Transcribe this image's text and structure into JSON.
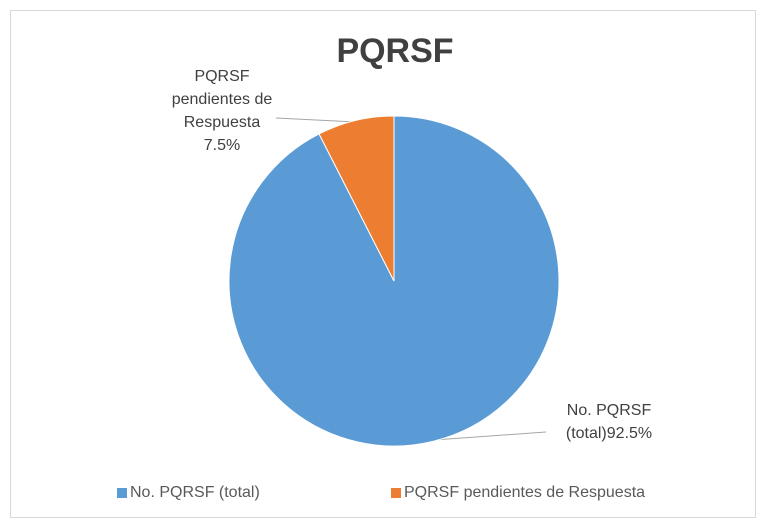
{
  "chart_data": {
    "type": "pie",
    "title": "PQRSF",
    "categories": [
      "No. PQRSF (total)",
      "PQRSF pendientes de Respuesta"
    ],
    "values": [
      92.5,
      7.5
    ],
    "value_labels": [
      "92.5%",
      "7.5%"
    ],
    "colors": [
      "#5b9bd5",
      "#ed7d31"
    ],
    "legend": "bottom"
  }
}
